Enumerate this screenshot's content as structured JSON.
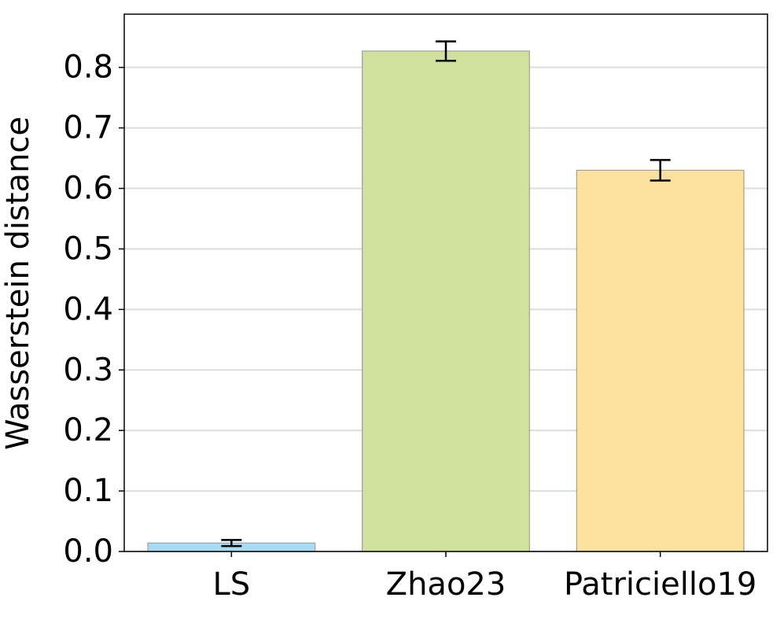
{
  "chart_data": {
    "type": "bar",
    "y_label": "Wasserstein distance",
    "categories": [
      "LS",
      "Zhao23",
      "Patriciello19"
    ],
    "values": [
      0.014,
      0.827,
      0.63
    ],
    "errors": [
      0.005,
      0.016,
      0.017
    ],
    "colors": [
      "#a6dcf5",
      "#cfe19a",
      "#fde09c"
    ],
    "ylim": [
      0,
      0.888
    ],
    "yticks": [
      {
        "value": 0,
        "label": "0.0"
      },
      0.1,
      0.2,
      0.3,
      0.4,
      0.5,
      0.6,
      0.7,
      0.8
    ],
    "grid": true
  }
}
